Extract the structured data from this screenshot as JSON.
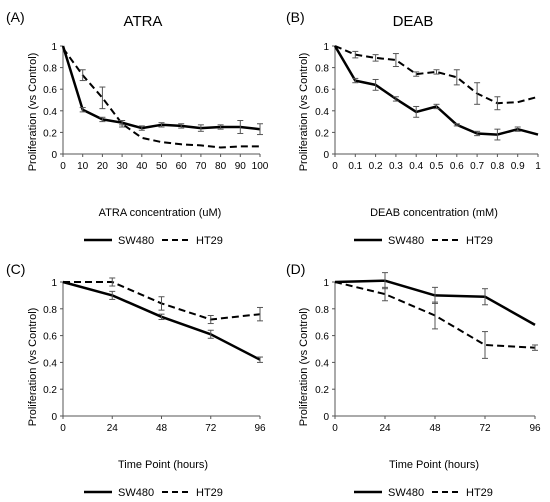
{
  "chart_data": [
    {
      "panel_label": "(A)",
      "type": "line",
      "title": "ATRA",
      "xlabel": "ATRA concentration (uM)",
      "ylabel": "Proliferation (vs Control)",
      "xlim": [
        0,
        100
      ],
      "ylim": [
        0,
        1
      ],
      "x_ticks": [
        0,
        10,
        20,
        30,
        40,
        50,
        60,
        70,
        80,
        90,
        100
      ],
      "x_tick_labels": [
        "0",
        "10",
        "20",
        "30",
        "40",
        "50",
        "60",
        "70",
        "80",
        "90",
        "100"
      ],
      "y_ticks": [
        0,
        0.2,
        0.4,
        0.6,
        0.8,
        1
      ],
      "y_tick_labels": [
        "0",
        "0.2",
        "0.4",
        "0.6",
        "0.8",
        "1"
      ],
      "grid": false,
      "legend_position": "bottom",
      "series": [
        {
          "name": "SW480",
          "style": "solid",
          "x": [
            0,
            10,
            20,
            30,
            40,
            50,
            60,
            70,
            80,
            90,
            100
          ],
          "y": [
            1.0,
            0.41,
            0.32,
            0.29,
            0.24,
            0.27,
            0.26,
            0.24,
            0.25,
            0.25,
            0.23
          ],
          "error": [
            0,
            0.02,
            0.02,
            0.02,
            0.02,
            0.02,
            0.02,
            0.03,
            0.02,
            0.06,
            0.05
          ]
        },
        {
          "name": "HT29",
          "style": "dashed",
          "x": [
            0,
            10,
            20,
            30,
            40,
            50,
            60,
            70,
            80,
            90,
            100
          ],
          "y": [
            0.98,
            0.73,
            0.52,
            0.28,
            0.15,
            0.11,
            0.09,
            0.08,
            0.06,
            0.07,
            0.07
          ],
          "error": [
            0,
            0.05,
            0.1,
            0.03,
            0,
            0,
            0,
            0,
            0,
            0,
            0
          ]
        }
      ]
    },
    {
      "panel_label": "(B)",
      "type": "line",
      "title": "DEAB",
      "xlabel": "DEAB concentration (mM)",
      "ylabel": "Proliferation (vs Control)",
      "xlim": [
        0,
        1
      ],
      "ylim": [
        0,
        1
      ],
      "x_ticks": [
        0,
        0.1,
        0.2,
        0.3,
        0.4,
        0.5,
        0.6,
        0.7,
        0.8,
        0.9,
        1
      ],
      "x_tick_labels": [
        "0",
        "0.1",
        "0.2",
        "0.3",
        "0.4",
        "0.5",
        "0.6",
        "0.7",
        "0.8",
        "0.9",
        "1"
      ],
      "y_ticks": [
        0,
        0.2,
        0.4,
        0.6,
        0.8,
        1
      ],
      "y_tick_labels": [
        "0",
        "0.2",
        "0.4",
        "0.6",
        "0.8",
        "1"
      ],
      "grid": false,
      "legend_position": "bottom",
      "series": [
        {
          "name": "SW480",
          "style": "solid",
          "x": [
            0,
            0.1,
            0.2,
            0.3,
            0.4,
            0.5,
            0.6,
            0.7,
            0.8,
            0.9,
            1
          ],
          "y": [
            1.0,
            0.68,
            0.64,
            0.51,
            0.39,
            0.44,
            0.27,
            0.19,
            0.18,
            0.23,
            0.18
          ],
          "error": [
            0,
            0.02,
            0.05,
            0.02,
            0.05,
            0.02,
            0.01,
            0.02,
            0.05,
            0.02,
            0
          ]
        },
        {
          "name": "HT29",
          "style": "dashed",
          "x": [
            0,
            0.1,
            0.2,
            0.3,
            0.4,
            0.5,
            0.6,
            0.7,
            0.8,
            0.9,
            1
          ],
          "y": [
            1.0,
            0.92,
            0.89,
            0.87,
            0.74,
            0.76,
            0.71,
            0.56,
            0.47,
            0.48,
            0.53
          ],
          "error": [
            0,
            0.03,
            0.03,
            0.06,
            0.02,
            0.02,
            0.07,
            0.1,
            0.06,
            0,
            0
          ]
        }
      ]
    },
    {
      "panel_label": "(C)",
      "type": "line",
      "title": "",
      "xlabel": "Time Point (hours)",
      "ylabel": "Proliferation (vs Control)",
      "xlim": [
        0,
        96
      ],
      "ylim": [
        0,
        1
      ],
      "x_ticks": [
        0,
        24,
        48,
        72,
        96
      ],
      "x_tick_labels": [
        "0",
        "24",
        "48",
        "72",
        "96"
      ],
      "y_ticks": [
        0,
        0.2,
        0.4,
        0.6,
        0.8,
        1
      ],
      "y_tick_labels": [
        "0",
        "0.2",
        "0.4",
        "0.6",
        "0.8",
        "1"
      ],
      "grid": false,
      "legend_position": "bottom",
      "series": [
        {
          "name": "SW480",
          "style": "solid",
          "x": [
            0,
            24,
            48,
            72,
            96
          ],
          "y": [
            1.0,
            0.9,
            0.74,
            0.61,
            0.42
          ],
          "error": [
            0,
            0.03,
            0.02,
            0.03,
            0.02
          ]
        },
        {
          "name": "HT29",
          "style": "dashed",
          "x": [
            0,
            24,
            48,
            72,
            96
          ],
          "y": [
            1.0,
            1.0,
            0.84,
            0.72,
            0.76
          ],
          "error": [
            0,
            0.03,
            0.05,
            0.03,
            0.05
          ]
        }
      ]
    },
    {
      "panel_label": "(D)",
      "type": "line",
      "title": "",
      "xlabel": "Time Point (hours)",
      "ylabel": "Proliferation (vs Control)",
      "xlim": [
        0,
        96
      ],
      "ylim": [
        0,
        1
      ],
      "x_ticks": [
        0,
        24,
        48,
        72,
        96
      ],
      "x_tick_labels": [
        "0",
        "24",
        "48",
        "72",
        "96"
      ],
      "y_ticks": [
        0,
        0.2,
        0.4,
        0.6,
        0.8,
        1
      ],
      "y_tick_labels": [
        "0",
        "0.2",
        "0.4",
        "0.6",
        "0.8",
        "1"
      ],
      "grid": false,
      "legend_position": "bottom",
      "series": [
        {
          "name": "SW480",
          "style": "solid",
          "x": [
            0,
            24,
            48,
            72,
            96
          ],
          "y": [
            1.0,
            1.01,
            0.9,
            0.89,
            0.68
          ],
          "error": [
            0,
            0.06,
            0.06,
            0.06,
            0
          ]
        },
        {
          "name": "HT29",
          "style": "dashed",
          "x": [
            0,
            24,
            48,
            72,
            96
          ],
          "y": [
            1.0,
            0.91,
            0.75,
            0.53,
            0.51
          ],
          "error": [
            0,
            0.05,
            0.1,
            0.1,
            0.02
          ]
        }
      ]
    }
  ]
}
